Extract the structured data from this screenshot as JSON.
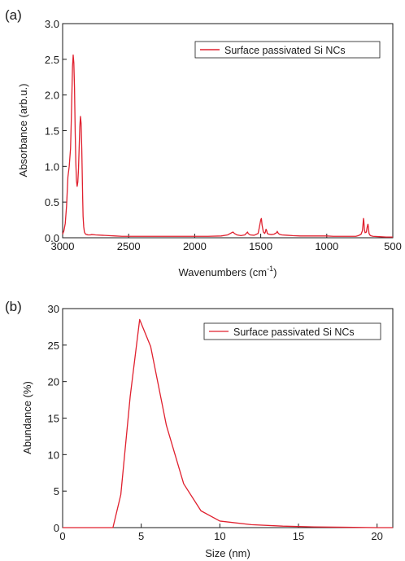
{
  "colors": {
    "series": "#e0202e",
    "axis": "#1a1a1a"
  },
  "chart_data": [
    {
      "type": "line",
      "panel_label": "(a)",
      "xlabel": "Wavenumbers (cm",
      "xlabel_sup": "-1",
      "xlabel_suffix": ")",
      "ylabel": "Absorbance (arb.u.)",
      "xlim": [
        3000,
        500
      ],
      "ylim": [
        0,
        3.0
      ],
      "x_ticks": [
        3000,
        2500,
        2000,
        1500,
        1000,
        500
      ],
      "x_tick_labels": [
        "3000",
        "2500",
        "2000",
        "1500",
        "1000",
        "500"
      ],
      "y_ticks": [
        0,
        0.5,
        1.0,
        1.5,
        2.0,
        2.5,
        3.0
      ],
      "y_tick_labels": [
        "0.0",
        "0.5",
        "1.0",
        "1.5",
        "2.0",
        "2.5",
        "3.0"
      ],
      "grid": false,
      "legend_position": "top-right",
      "series": [
        {
          "name": "Surface passivated Si NCs",
          "x": [
            3000,
            2990,
            2980,
            2970,
            2960,
            2950,
            2940,
            2935,
            2930,
            2925,
            2920,
            2915,
            2910,
            2905,
            2900,
            2895,
            2890,
            2885,
            2880,
            2875,
            2870,
            2865,
            2860,
            2855,
            2852,
            2848,
            2845,
            2840,
            2835,
            2830,
            2825,
            2820,
            2815,
            2810,
            2800,
            2790,
            2780,
            2750,
            2700,
            2650,
            2600,
            2550,
            2500,
            2400,
            2300,
            2200,
            2100,
            2000,
            1900,
            1800,
            1750,
            1720,
            1710,
            1700,
            1680,
            1650,
            1620,
            1605,
            1600,
            1595,
            1580,
            1550,
            1520,
            1510,
            1500,
            1495,
            1490,
            1480,
            1470,
            1465,
            1460,
            1455,
            1450,
            1440,
            1420,
            1400,
            1380,
            1375,
            1370,
            1360,
            1340,
            1300,
            1260,
            1200,
            1150,
            1100,
            1050,
            1000,
            950,
            900,
            850,
            800,
            780,
            760,
            740,
            730,
            725,
            722,
            720,
            715,
            710,
            700,
            695,
            690,
            688,
            685,
            680,
            670,
            650,
            600,
            550,
            500
          ],
          "y": [
            0.05,
            0.1,
            0.2,
            0.45,
            0.85,
            1.0,
            1.25,
            1.6,
            2.0,
            2.4,
            2.56,
            2.45,
            2.1,
            1.5,
            1.05,
            0.8,
            0.72,
            0.78,
            0.95,
            1.25,
            1.55,
            1.7,
            1.6,
            1.25,
            0.95,
            0.55,
            0.3,
            0.15,
            0.08,
            0.06,
            0.05,
            0.045,
            0.045,
            0.04,
            0.04,
            0.04,
            0.045,
            0.04,
            0.035,
            0.03,
            0.025,
            0.02,
            0.02,
            0.02,
            0.02,
            0.02,
            0.02,
            0.02,
            0.02,
            0.025,
            0.04,
            0.07,
            0.08,
            0.06,
            0.04,
            0.03,
            0.04,
            0.07,
            0.08,
            0.06,
            0.04,
            0.035,
            0.06,
            0.15,
            0.25,
            0.27,
            0.18,
            0.08,
            0.06,
            0.08,
            0.12,
            0.1,
            0.06,
            0.05,
            0.045,
            0.05,
            0.07,
            0.09,
            0.07,
            0.05,
            0.04,
            0.035,
            0.03,
            0.025,
            0.025,
            0.025,
            0.025,
            0.025,
            0.02,
            0.02,
            0.02,
            0.02,
            0.02,
            0.03,
            0.05,
            0.1,
            0.2,
            0.27,
            0.25,
            0.12,
            0.07,
            0.08,
            0.14,
            0.18,
            0.19,
            0.15,
            0.06,
            0.03,
            0.02,
            0.015,
            0.01,
            0.01
          ]
        }
      ]
    },
    {
      "type": "line",
      "panel_label": "(b)",
      "xlabel": "Size (nm)",
      "ylabel": "Abundance (%)",
      "xlim": [
        0,
        21
      ],
      "ylim": [
        0,
        30
      ],
      "x_ticks": [
        0,
        5,
        10,
        15,
        20
      ],
      "x_tick_labels": [
        "0",
        "5",
        "10",
        "15",
        "20"
      ],
      "y_ticks": [
        0,
        5,
        10,
        15,
        20,
        25,
        30
      ],
      "y_tick_labels": [
        "0",
        "5",
        "10",
        "15",
        "20",
        "25",
        "30"
      ],
      "grid": false,
      "legend_position": "top-right",
      "series": [
        {
          "name": "Surface passivated Si NCs",
          "x": [
            0,
            1,
            2,
            3,
            3.2,
            3.7,
            4.3,
            4.9,
            5.6,
            6.6,
            7.7,
            8.8,
            10,
            12,
            14,
            16,
            18,
            20,
            21
          ],
          "y": [
            0,
            0,
            0,
            0,
            0,
            4.5,
            18,
            28.5,
            24.8,
            14,
            6,
            2.3,
            0.9,
            0.4,
            0.2,
            0.1,
            0.05,
            0,
            0
          ]
        }
      ]
    }
  ]
}
